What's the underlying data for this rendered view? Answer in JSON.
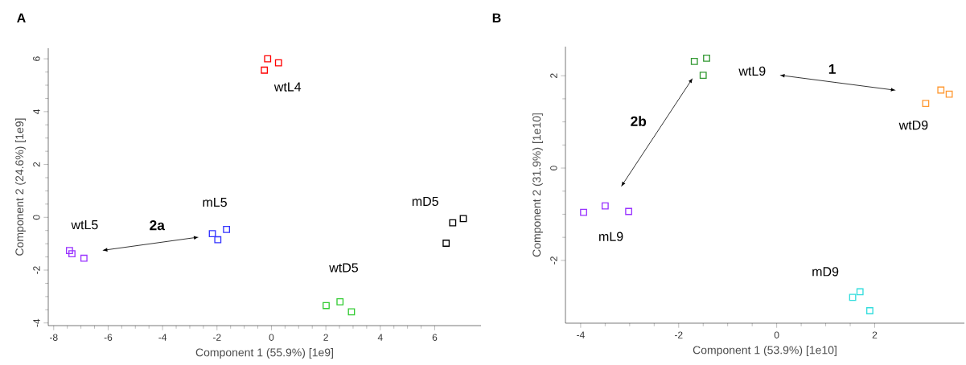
{
  "chart_data": [
    {
      "type": "scatter",
      "title": "A",
      "xlabel": "Component 1 (55.9%) [1e9]",
      "ylabel": "Component 2 (24.6%) [1e9]",
      "xlim": [
        -8.2,
        7.7
      ],
      "ylim": [
        -4.1,
        6.4
      ],
      "xticks": [
        -8,
        -6,
        -4,
        -2,
        0,
        2,
        4,
        6
      ],
      "yticks": [
        -4,
        -2,
        0,
        2,
        4,
        6
      ],
      "marker": "square",
      "legend": false,
      "grid": false,
      "series": [
        {
          "name": "wtL5",
          "color": "#9933ff",
          "x": [
            -7.42,
            -7.33,
            -6.89
          ],
          "values": [
            -1.26,
            -1.38,
            -1.55
          ]
        },
        {
          "name": "mL5",
          "color": "#3333ff",
          "x": [
            -2.17,
            -1.97,
            -1.65
          ],
          "values": [
            -0.62,
            -0.85,
            -0.46
          ]
        },
        {
          "name": "wtL4",
          "color": "#ff0000",
          "x": [
            -0.14,
            0.26,
            -0.26
          ],
          "values": [
            6.0,
            5.85,
            5.57
          ]
        },
        {
          "name": "wtD5",
          "color": "#33cc33",
          "x": [
            2.01,
            2.52,
            2.94
          ],
          "values": [
            -3.34,
            -3.2,
            -3.58
          ]
        },
        {
          "name": "mD5",
          "color": "#000000",
          "x": [
            6.42,
            6.66,
            7.05
          ],
          "values": [
            -0.98,
            -0.21,
            -0.05
          ]
        }
      ],
      "annotations": [
        "2a"
      ]
    },
    {
      "type": "scatter",
      "title": "B",
      "xlabel": "Component 1 (53.9%) [1e10]",
      "ylabel": "Component 2 (31.9%) [1e10]",
      "xlim": [
        -4.31,
        3.83
      ],
      "ylim": [
        -3.36,
        2.63
      ],
      "xticks": [
        -4,
        -2,
        0,
        2
      ],
      "yticks": [
        -2,
        0,
        2
      ],
      "marker": "square",
      "legend": false,
      "grid": false,
      "series": [
        {
          "name": "wtL9",
          "color": "#339933",
          "x": [
            -1.68,
            -1.43,
            -1.5
          ],
          "values": [
            2.31,
            2.38,
            2.01
          ]
        },
        {
          "name": "wtD9",
          "color": "#ff9933",
          "x": [
            3.04,
            3.35,
            3.52
          ],
          "values": [
            1.4,
            1.69,
            1.6
          ]
        },
        {
          "name": "mL9",
          "color": "#9933ff",
          "x": [
            -3.94,
            -3.5,
            -3.02
          ],
          "values": [
            -0.96,
            -0.82,
            -0.94
          ]
        },
        {
          "name": "mD9",
          "color": "#33dddd",
          "x": [
            1.55,
            1.7,
            1.9
          ],
          "values": [
            -2.8,
            -2.68,
            -3.09
          ]
        }
      ],
      "annotations": [
        "2b",
        "1"
      ]
    }
  ]
}
